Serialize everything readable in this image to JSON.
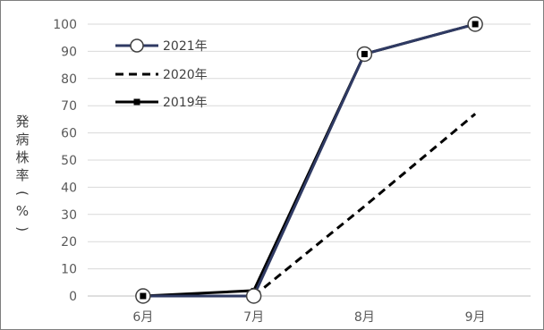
{
  "chart_data": {
    "type": "line",
    "categories": [
      "6月",
      "7月",
      "8月",
      "9月"
    ],
    "ylabel": "発病株率(%)",
    "ylim": [
      0,
      100
    ],
    "yticks": [
      0,
      10,
      20,
      30,
      40,
      50,
      60,
      70,
      80,
      90,
      100
    ],
    "grid": true,
    "legend_position": "top-left",
    "series": [
      {
        "name": "2021年",
        "values": [
          0,
          0,
          89,
          100
        ],
        "color": "#2f3a63",
        "style": "solid-open-circle"
      },
      {
        "name": "2020年",
        "values": [
          null,
          0,
          33,
          67
        ],
        "color": "#000000",
        "style": "dashed"
      },
      {
        "name": "2019年",
        "values": [
          0,
          2,
          89,
          100
        ],
        "color": "#000000",
        "style": "solid-square-marker"
      }
    ]
  }
}
